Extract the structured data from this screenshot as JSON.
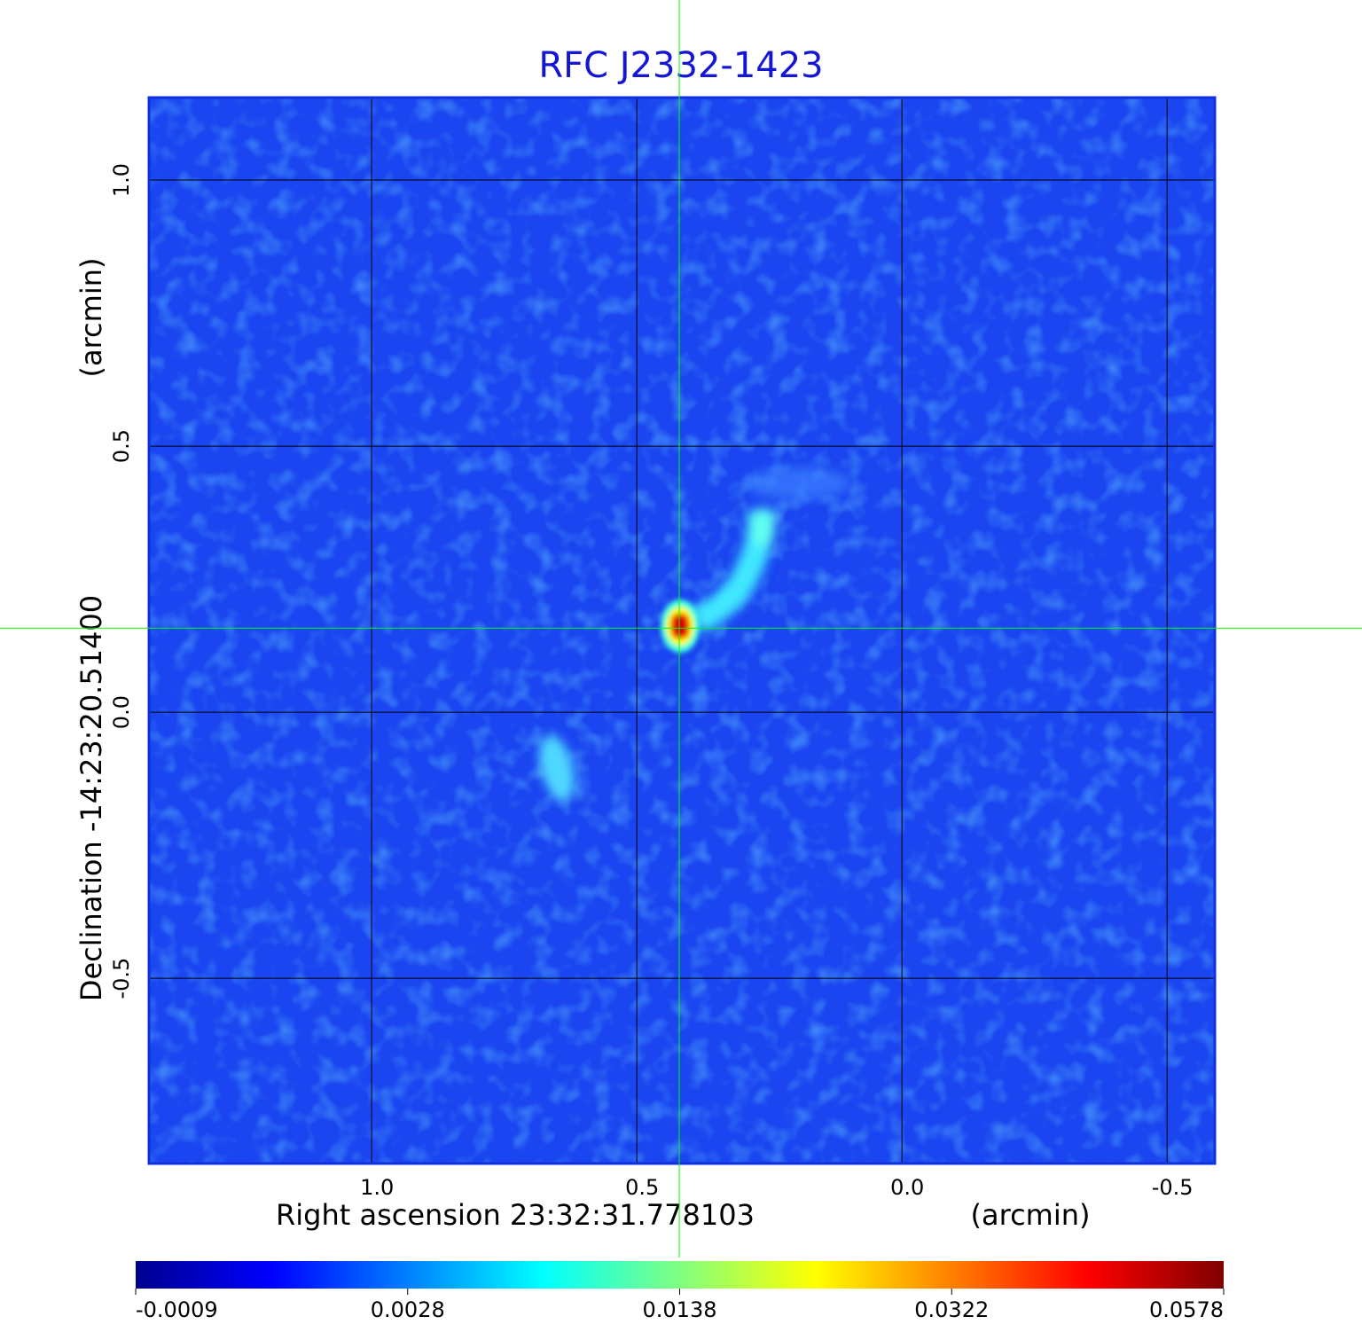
{
  "chart_data": {
    "type": "image",
    "title": "RFC J2332-1423",
    "xlabel": "Right ascension  23:32:31.778103",
    "xunit": "(arcmin)",
    "ylabel": "Declination  -14:23:20.51400",
    "yunit": "(arcmin)",
    "xlim": [
      1.42,
      -0.59
    ],
    "ylim": [
      -0.848,
      1.155
    ],
    "xticks": [
      {
        "value": 1.0,
        "label": "1.0"
      },
      {
        "value": 0.5,
        "label": "0.5"
      },
      {
        "value": 0.0,
        "label": "0.0"
      },
      {
        "value": -0.5,
        "label": "-0.5"
      }
    ],
    "yticks": [
      {
        "value": 1.0,
        "label": "1.0"
      },
      {
        "value": 0.5,
        "label": "0.5"
      },
      {
        "value": 0.0,
        "label": "0.0"
      },
      {
        "value": -0.5,
        "label": "-0.5"
      }
    ],
    "grid": true,
    "crosshair": {
      "x": 0.42,
      "y": 0.158,
      "color": "#00ff00"
    },
    "colorbar": {
      "ticks": [
        {
          "value": -0.0009,
          "label": "-0.0009"
        },
        {
          "value": 0.0028,
          "label": "0.0028"
        },
        {
          "value": 0.0138,
          "label": "0.0138"
        },
        {
          "value": 0.0322,
          "label": "0.0322"
        },
        {
          "value": 0.0578,
          "label": "0.0578"
        }
      ],
      "colors": [
        "#00008f",
        "#0000ff",
        "#0080ff",
        "#00ffff",
        "#80ff80",
        "#ffff00",
        "#ff8000",
        "#ff0000",
        "#800000"
      ]
    }
  }
}
